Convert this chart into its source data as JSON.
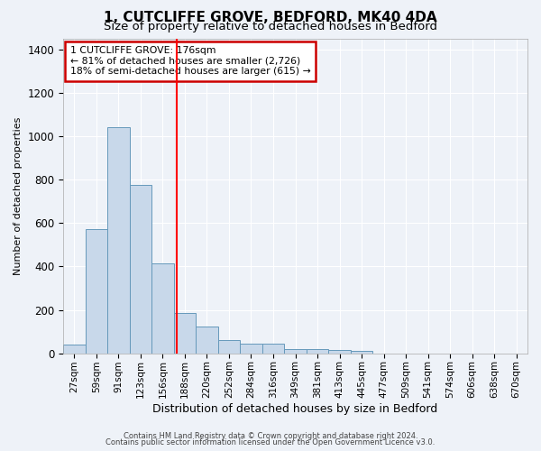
{
  "title": "1, CUTCLIFFE GROVE, BEDFORD, MK40 4DA",
  "subtitle": "Size of property relative to detached houses in Bedford",
  "xlabel": "Distribution of detached houses by size in Bedford",
  "ylabel": "Number of detached properties",
  "categories": [
    "27sqm",
    "59sqm",
    "91sqm",
    "123sqm",
    "156sqm",
    "188sqm",
    "220sqm",
    "252sqm",
    "284sqm",
    "316sqm",
    "349sqm",
    "381sqm",
    "413sqm",
    "445sqm",
    "477sqm",
    "509sqm",
    "541sqm",
    "574sqm",
    "606sqm",
    "638sqm",
    "670sqm"
  ],
  "values": [
    40,
    570,
    1040,
    775,
    415,
    185,
    125,
    60,
    45,
    45,
    20,
    20,
    15,
    10,
    0,
    0,
    0,
    0,
    0,
    0,
    0
  ],
  "bar_color": "#c8d8ea",
  "bar_edge_color": "#6699bb",
  "red_line_x": 4.625,
  "ylim": [
    0,
    1450
  ],
  "yticks": [
    0,
    200,
    400,
    600,
    800,
    1000,
    1200,
    1400
  ],
  "annotation_text": "1 CUTCLIFFE GROVE: 176sqm\n← 81% of detached houses are smaller (2,726)\n18% of semi-detached houses are larger (615) →",
  "annotation_box_color": "#ffffff",
  "annotation_box_edge": "#cc0000",
  "footer1": "Contains HM Land Registry data © Crown copyright and database right 2024.",
  "footer2": "Contains public sector information licensed under the Open Government Licence v3.0.",
  "background_color": "#eef2f8",
  "grid_color": "#ffffff",
  "title_fontsize": 11,
  "subtitle_fontsize": 9.5,
  "tick_fontsize": 7.5,
  "ylabel_fontsize": 8,
  "xlabel_fontsize": 9
}
